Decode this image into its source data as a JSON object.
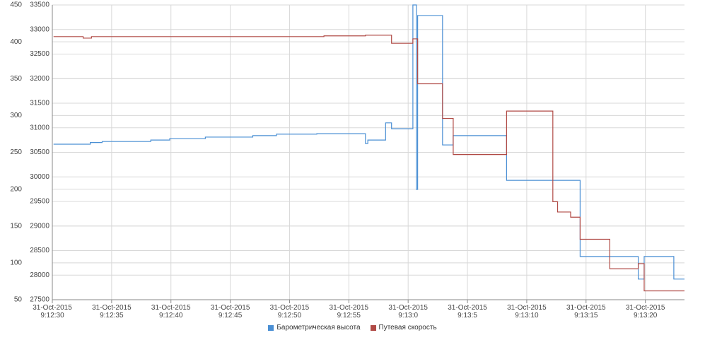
{
  "chart_data": {
    "type": "step",
    "xlim": [
      "2015-10-31T09:12:30",
      "2015-10-31T09:13:23.3"
    ],
    "xticks": [
      {
        "value": "2015-10-31T09:12:30",
        "label": "31-Oct-2015\n9:12:30"
      },
      {
        "value": "2015-10-31T09:12:35",
        "label": "31-Oct-2015\n9:12:35"
      },
      {
        "value": "2015-10-31T09:12:40",
        "label": "31-Oct-2015\n9:12:40"
      },
      {
        "value": "2015-10-31T09:12:45",
        "label": "31-Oct-2015\n9:12:45"
      },
      {
        "value": "2015-10-31T09:12:50",
        "label": "31-Oct-2015\n9:12:50"
      },
      {
        "value": "2015-10-31T09:12:55",
        "label": "31-Oct-2015\n9:12:55"
      },
      {
        "value": "2015-10-31T09:13:00",
        "label": "31-Oct-2015\n9:13:0"
      },
      {
        "value": "2015-10-31T09:13:05",
        "label": "31-Oct-2015\n9:13:5"
      },
      {
        "value": "2015-10-31T09:13:10",
        "label": "31-Oct-2015\n9:13:10"
      },
      {
        "value": "2015-10-31T09:13:15",
        "label": "31-Oct-2015\n9:13:15"
      },
      {
        "value": "2015-10-31T09:13:20",
        "label": "31-Oct-2015\n9:13:20"
      }
    ],
    "ylim": [
      50,
      450
    ],
    "yticks": [
      50,
      100,
      150,
      200,
      250,
      300,
      350,
      400,
      450
    ],
    "y2lim": [
      27500,
      33500
    ],
    "y2ticks": [
      27500,
      28000,
      28500,
      29000,
      29500,
      30000,
      30500,
      31000,
      31500,
      32000,
      32500,
      33000,
      33500
    ],
    "grid": true,
    "series": [
      {
        "name": "Барометрическая высота",
        "color": "#4a8fd4",
        "axis": "y2",
        "x": [
          "2015-10-31T09:12:30.1",
          "2015-10-31T09:12:33.2",
          "2015-10-31T09:12:34.2",
          "2015-10-31T09:12:38.3",
          "2015-10-31T09:12:39.9",
          "2015-10-31T09:12:42.9",
          "2015-10-31T09:12:46.9",
          "2015-10-31T09:12:48.9",
          "2015-10-31T09:12:52.3",
          "2015-10-31T09:12:56.4",
          "2015-10-31T09:12:56.6",
          "2015-10-31T09:12:58.1",
          "2015-10-31T09:12:58.6",
          "2015-10-31T09:13:00.4",
          "2015-10-31T09:13:00.7",
          "2015-10-31T09:13:00.8",
          "2015-10-31T09:13:02.9",
          "2015-10-31T09:13:03.8",
          "2015-10-31T09:13:08.3",
          "2015-10-31T09:13:14.5",
          "2015-10-31T09:13:19.4",
          "2015-10-31T09:13:19.9",
          "2015-10-31T09:13:22.4"
        ],
        "values": [
          30665,
          30700,
          30720,
          30750,
          30780,
          30810,
          30840,
          30870,
          30880,
          30680,
          30750,
          31100,
          30980,
          33500,
          29745,
          33285,
          30650,
          30840,
          29930,
          28380,
          27920,
          28380,
          27920
        ]
      },
      {
        "name": "Путевая скорость",
        "color": "#b04a45",
        "axis": "y",
        "x": [
          "2015-10-31T09:12:30.1",
          "2015-10-31T09:12:32.6",
          "2015-10-31T09:12:33.3",
          "2015-10-31T09:12:52.9",
          "2015-10-31T09:12:56.4",
          "2015-10-31T09:12:58.6",
          "2015-10-31T09:13:00.4",
          "2015-10-31T09:13:00.8",
          "2015-10-31T09:13:02.9",
          "2015-10-31T09:13:03.8",
          "2015-10-31T09:13:08.3",
          "2015-10-31T09:13:12.2",
          "2015-10-31T09:13:12.6",
          "2015-10-31T09:13:13.7",
          "2015-10-31T09:13:14.5",
          "2015-10-31T09:13:17.0",
          "2015-10-31T09:13:19.4",
          "2015-10-31T09:13:19.9"
        ],
        "values": [
          407,
          405,
          407,
          408,
          409,
          398,
          404,
          343,
          296,
          247,
          306,
          183,
          169,
          162,
          132,
          92,
          99,
          62
        ]
      }
    ]
  }
}
